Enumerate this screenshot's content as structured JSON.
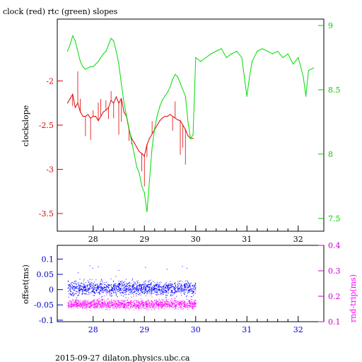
{
  "title": "clock (red) rtc (green) slopes",
  "footer": "2015-09-27 dilaton.physics.ubc.ca",
  "colors": {
    "red": "#e00000",
    "green": "#00dd00",
    "blue": "#0000ff",
    "magenta": "#ff00ff",
    "left_axis": "#e00000",
    "top_right_axis": "#00cc00",
    "bottom_left_axis": "#0000cc",
    "bottom_right_axis": "#cc00cc"
  },
  "chart_data": [
    {
      "type": "line",
      "ylabel": "clockslope",
      "x_ticks": [
        "28",
        "29",
        "30",
        "31",
        "32"
      ],
      "y_left_ticks": [
        "-2",
        "-2.5",
        "-3",
        "-3.5"
      ],
      "y_right_ticks": [
        "9",
        "8.5",
        "8",
        "7.5"
      ],
      "xlim": [
        27.3,
        32.5
      ],
      "ylim_left": [
        -3.7,
        -1.3
      ],
      "ylim_right": [
        7.4,
        9.05
      ],
      "series": [
        {
          "name": "clock",
          "color": "red",
          "axis": "left",
          "x": [
            27.5,
            27.55,
            27.6,
            27.65,
            27.7,
            27.75,
            27.8,
            27.85,
            27.9,
            27.95,
            28.0,
            28.05,
            28.1,
            28.15,
            28.2,
            28.25,
            28.3,
            28.35,
            28.4,
            28.45,
            28.5,
            28.55,
            28.6,
            28.65,
            28.7,
            28.75,
            28.8,
            28.85,
            28.9,
            28.95,
            29.0,
            29.05,
            29.1,
            29.15,
            29.2,
            29.25,
            29.3,
            29.35,
            29.4,
            29.45,
            29.5,
            29.55,
            29.6,
            29.65,
            29.7,
            29.75,
            29.8,
            29.85,
            29.9,
            29.95
          ],
          "y": [
            -2.25,
            -2.2,
            -2.15,
            -2.3,
            -2.25,
            -2.35,
            -2.4,
            -2.4,
            -2.38,
            -2.42,
            -2.4,
            -2.4,
            -2.45,
            -2.4,
            -2.35,
            -2.33,
            -2.3,
            -2.22,
            -2.25,
            -2.18,
            -2.25,
            -2.2,
            -2.35,
            -2.4,
            -2.55,
            -2.65,
            -2.7,
            -2.75,
            -2.8,
            -2.82,
            -2.85,
            -2.72,
            -2.65,
            -2.6,
            -2.55,
            -2.5,
            -2.45,
            -2.42,
            -2.4,
            -2.4,
            -2.38,
            -2.4,
            -2.42,
            -2.44,
            -2.45,
            -2.5,
            -2.55,
            -2.62,
            -2.65,
            -2.65
          ]
        },
        {
          "name": "rtc",
          "color": "green",
          "axis": "right",
          "x": [
            27.5,
            27.55,
            27.6,
            27.65,
            27.7,
            27.75,
            27.8,
            27.85,
            27.9,
            27.95,
            28.0,
            28.05,
            28.1,
            28.15,
            28.2,
            28.25,
            28.3,
            28.35,
            28.4,
            28.45,
            28.5,
            28.55,
            28.6,
            28.65,
            28.7,
            28.75,
            28.8,
            28.85,
            28.9,
            28.95,
            29.0,
            29.05,
            29.1,
            29.15,
            29.2,
            29.25,
            29.3,
            29.35,
            29.4,
            29.45,
            29.5,
            29.55,
            29.6,
            29.65,
            29.7,
            29.75,
            29.8,
            29.85,
            29.9,
            29.95,
            30.0,
            30.1,
            30.2,
            30.3,
            30.4,
            30.5,
            30.6,
            30.7,
            30.8,
            30.9,
            31.0,
            31.05,
            31.1,
            31.2,
            31.3,
            31.4,
            31.5,
            31.6,
            31.7,
            31.8,
            31.9,
            32.0,
            32.1,
            32.15,
            32.2,
            32.3
          ],
          "y": [
            8.8,
            8.85,
            8.92,
            8.88,
            8.8,
            8.72,
            8.68,
            8.66,
            8.67,
            8.68,
            8.68,
            8.7,
            8.72,
            8.75,
            8.78,
            8.8,
            8.85,
            8.9,
            8.88,
            8.8,
            8.7,
            8.55,
            8.4,
            8.3,
            8.2,
            8.1,
            8.0,
            7.9,
            7.85,
            7.75,
            7.7,
            7.55,
            7.8,
            8.05,
            8.2,
            8.3,
            8.37,
            8.42,
            8.45,
            8.48,
            8.52,
            8.58,
            8.62,
            8.6,
            8.55,
            8.5,
            8.45,
            8.25,
            8.12,
            8.15,
            8.75,
            8.72,
            8.75,
            8.78,
            8.8,
            8.82,
            8.75,
            8.78,
            8.8,
            8.75,
            8.45,
            8.6,
            8.72,
            8.8,
            8.82,
            8.8,
            8.78,
            8.8,
            8.75,
            8.78,
            8.7,
            8.75,
            8.6,
            8.45,
            8.65,
            8.67
          ]
        }
      ]
    },
    {
      "type": "scatter",
      "ylabel": "offset(ms)",
      "y2label": "rnd-trip(ms)",
      "x_ticks": [
        "28",
        "29",
        "30",
        "31",
        "32"
      ],
      "y_left_ticks": [
        "0.1",
        "0.05",
        "0",
        "-0.05",
        "-0.1"
      ],
      "y_right_ticks": [
        "0.4",
        "0.3",
        "0.2",
        "0.1"
      ],
      "xlim": [
        27.3,
        32.5
      ],
      "ylim_left": [
        -0.105,
        0.145
      ],
      "ylim_right": [
        0.1,
        0.4
      ],
      "series": [
        {
          "name": "offset",
          "color": "blue",
          "axis": "left",
          "x_range": [
            27.5,
            30.0
          ],
          "y_center": 0.005,
          "y_spread": 0.02
        },
        {
          "name": "rnd-trip",
          "color": "magenta",
          "axis": "right",
          "x_range": [
            27.5,
            30.0
          ],
          "y_center": 0.17,
          "y_spread": 0.015
        }
      ]
    }
  ]
}
